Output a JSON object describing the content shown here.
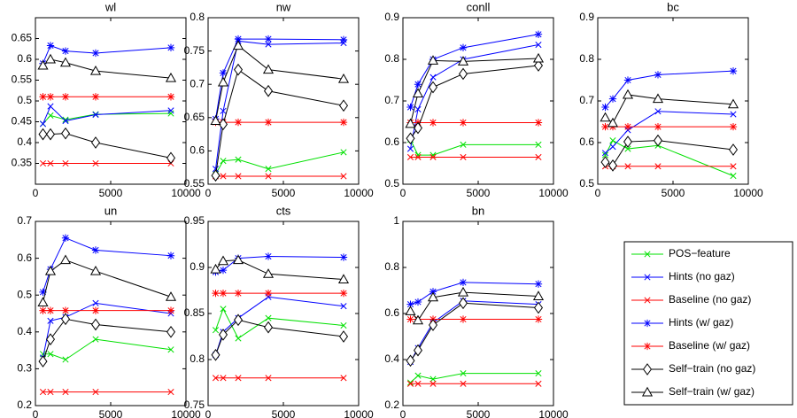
{
  "legend": [
    {
      "name": "POS−feature",
      "color": "#00e000",
      "marker": "x"
    },
    {
      "name": "Hints (no gaz)",
      "color": "#0000ff",
      "marker": "x"
    },
    {
      "name": "Baseline (no gaz)",
      "color": "#ff0000",
      "marker": "x"
    },
    {
      "name": "Hints (w/ gaz)",
      "color": "#0000ff",
      "marker": "star"
    },
    {
      "name": "Baseline (w/ gaz)",
      "color": "#ff0000",
      "marker": "star"
    },
    {
      "name": "Self−train (no gaz)",
      "color": "#000000",
      "marker": "diamond"
    },
    {
      "name": "Self−train (w/ gaz)",
      "color": "#000000",
      "marker": "triangle"
    }
  ],
  "chart_data": [
    {
      "type": "line",
      "title": "wl",
      "x": [
        500,
        1000,
        2000,
        4000,
        9000
      ],
      "xlim": [
        0,
        10000
      ],
      "xticks": [
        0,
        5000,
        10000
      ],
      "ylim": [
        0.3,
        0.7
      ],
      "yticks": [
        0.35,
        0.4,
        0.45,
        0.5,
        0.55,
        0.6,
        0.65
      ],
      "series": [
        {
          "values": [
            0.445,
            0.465,
            0.455,
            0.468,
            0.47
          ]
        },
        {
          "values": [
            0.445,
            0.487,
            0.452,
            0.467,
            0.477
          ]
        },
        {
          "values": [
            0.35,
            0.35,
            0.35,
            0.35,
            0.35
          ]
        },
        {
          "values": [
            0.59,
            0.633,
            0.62,
            0.615,
            0.628
          ]
        },
        {
          "values": [
            0.51,
            0.51,
            0.51,
            0.51,
            0.51
          ]
        },
        {
          "values": [
            0.42,
            0.42,
            0.422,
            0.4,
            0.363
          ]
        },
        {
          "values": [
            0.585,
            0.6,
            0.592,
            0.572,
            0.555
          ]
        }
      ]
    },
    {
      "type": "line",
      "title": "nw",
      "x": [
        500,
        1000,
        2000,
        4000,
        9000
      ],
      "xlim": [
        0,
        10000
      ],
      "xticks": [
        0,
        5000,
        10000
      ],
      "ylim": [
        0.55,
        0.8
      ],
      "yticks": [
        0.55,
        0.6,
        0.65,
        0.7,
        0.75,
        0.8
      ],
      "series": [
        {
          "values": [
            0.565,
            0.585,
            0.587,
            0.573,
            0.598
          ]
        },
        {
          "values": [
            0.573,
            0.66,
            0.765,
            0.76,
            0.762
          ]
        },
        {
          "values": [
            0.562,
            0.562,
            0.562,
            0.562,
            0.562
          ]
        },
        {
          "values": [
            0.648,
            0.717,
            0.768,
            0.768,
            0.767
          ]
        },
        {
          "values": [
            0.643,
            0.643,
            0.643,
            0.643,
            0.643
          ]
        },
        {
          "values": [
            0.563,
            0.64,
            0.722,
            0.69,
            0.668
          ]
        },
        {
          "values": [
            0.645,
            0.703,
            0.758,
            0.722,
            0.708
          ]
        }
      ]
    },
    {
      "type": "line",
      "title": "conll",
      "x": [
        500,
        1000,
        2000,
        4000,
        9000
      ],
      "xlim": [
        0,
        10000
      ],
      "xticks": [
        0,
        5000,
        10000
      ],
      "ylim": [
        0.5,
        0.9
      ],
      "yticks": [
        0.5,
        0.6,
        0.7,
        0.8,
        0.9
      ],
      "series": [
        {
          "values": [
            0.607,
            0.57,
            0.57,
            0.595,
            0.595
          ]
        },
        {
          "values": [
            0.585,
            0.68,
            0.757,
            0.8,
            0.835
          ]
        },
        {
          "values": [
            0.565,
            0.565,
            0.565,
            0.565,
            0.565
          ]
        },
        {
          "values": [
            0.685,
            0.74,
            0.8,
            0.828,
            0.86
          ]
        },
        {
          "values": [
            0.648,
            0.648,
            0.648,
            0.648,
            0.648
          ]
        },
        {
          "values": [
            0.61,
            0.635,
            0.733,
            0.765,
            0.785
          ]
        },
        {
          "values": [
            0.645,
            0.718,
            0.797,
            0.795,
            0.802
          ]
        }
      ]
    },
    {
      "type": "line",
      "title": "bc",
      "x": [
        500,
        1000,
        2000,
        4000,
        9000
      ],
      "xlim": [
        0,
        10000
      ],
      "xticks": [
        0,
        5000,
        10000
      ],
      "ylim": [
        0.5,
        0.9
      ],
      "yticks": [
        0.5,
        0.6,
        0.7,
        0.8,
        0.9
      ],
      "series": [
        {
          "values": [
            0.57,
            0.605,
            0.585,
            0.593,
            0.52
          ]
        },
        {
          "values": [
            0.575,
            0.59,
            0.63,
            0.675,
            0.668
          ]
        },
        {
          "values": [
            0.543,
            0.543,
            0.543,
            0.543,
            0.543
          ]
        },
        {
          "values": [
            0.685,
            0.705,
            0.75,
            0.763,
            0.772
          ]
        },
        {
          "values": [
            0.638,
            0.638,
            0.638,
            0.638,
            0.638
          ]
        },
        {
          "values": [
            0.553,
            0.545,
            0.602,
            0.605,
            0.583
          ]
        },
        {
          "values": [
            0.66,
            0.647,
            0.715,
            0.705,
            0.692
          ]
        }
      ]
    },
    {
      "type": "line",
      "title": "un",
      "x": [
        500,
        1000,
        2000,
        4000,
        9000
      ],
      "xlim": [
        0,
        10000
      ],
      "xticks": [
        0,
        5000,
        10000
      ],
      "ylim": [
        0.2,
        0.7
      ],
      "yticks": [
        0.2,
        0.3,
        0.4,
        0.5,
        0.6,
        0.7
      ],
      "series": [
        {
          "values": [
            0.34,
            0.34,
            0.325,
            0.38,
            0.352
          ]
        },
        {
          "values": [
            0.33,
            0.43,
            0.44,
            0.478,
            0.45
          ]
        },
        {
          "values": [
            0.237,
            0.237,
            0.237,
            0.237,
            0.237
          ]
        },
        {
          "values": [
            0.508,
            0.57,
            0.655,
            0.622,
            0.607
          ]
        },
        {
          "values": [
            0.458,
            0.458,
            0.458,
            0.458,
            0.458
          ]
        },
        {
          "values": [
            0.32,
            0.38,
            0.435,
            0.42,
            0.4
          ]
        },
        {
          "values": [
            0.48,
            0.565,
            0.595,
            0.565,
            0.495
          ]
        }
      ]
    },
    {
      "type": "line",
      "title": "cts",
      "x": [
        500,
        1000,
        2000,
        4000,
        9000
      ],
      "xlim": [
        0,
        10000
      ],
      "xticks": [
        0,
        5000,
        10000
      ],
      "ylim": [
        0.75,
        0.95
      ],
      "yticks": [
        0.75,
        0.8,
        0.85,
        0.9,
        0.95
      ],
      "series": [
        {
          "values": [
            0.832,
            0.855,
            0.823,
            0.845,
            0.837
          ]
        },
        {
          "values": [
            0.805,
            0.83,
            0.845,
            0.868,
            0.858
          ]
        },
        {
          "values": [
            0.78,
            0.78,
            0.78,
            0.78,
            0.78
          ]
        },
        {
          "values": [
            0.895,
            0.897,
            0.91,
            0.912,
            0.911
          ]
        },
        {
          "values": [
            0.872,
            0.872,
            0.872,
            0.872,
            0.872
          ]
        },
        {
          "values": [
            0.805,
            0.827,
            0.843,
            0.835,
            0.825
          ]
        },
        {
          "values": [
            0.898,
            0.907,
            0.908,
            0.893,
            0.887
          ]
        }
      ]
    },
    {
      "type": "line",
      "title": "bn",
      "x": [
        500,
        1000,
        2000,
        4000,
        9000
      ],
      "xlim": [
        0,
        10000
      ],
      "xticks": [
        0,
        5000,
        10000
      ],
      "ylim": [
        0.2,
        1
      ],
      "yticks": [
        0.2,
        0.4,
        0.6,
        0.8,
        1
      ],
      "series": [
        {
          "values": [
            0.3,
            0.33,
            0.315,
            0.34,
            0.34
          ]
        },
        {
          "values": [
            0.39,
            0.45,
            0.56,
            0.655,
            0.64
          ]
        },
        {
          "values": [
            0.295,
            0.295,
            0.295,
            0.295,
            0.295
          ]
        },
        {
          "values": [
            0.64,
            0.65,
            0.695,
            0.735,
            0.728
          ]
        },
        {
          "values": [
            0.575,
            0.575,
            0.575,
            0.575,
            0.575
          ]
        },
        {
          "values": [
            0.395,
            0.44,
            0.55,
            0.645,
            0.625
          ]
        },
        {
          "values": [
            0.61,
            0.57,
            0.67,
            0.692,
            0.675
          ]
        }
      ]
    }
  ]
}
